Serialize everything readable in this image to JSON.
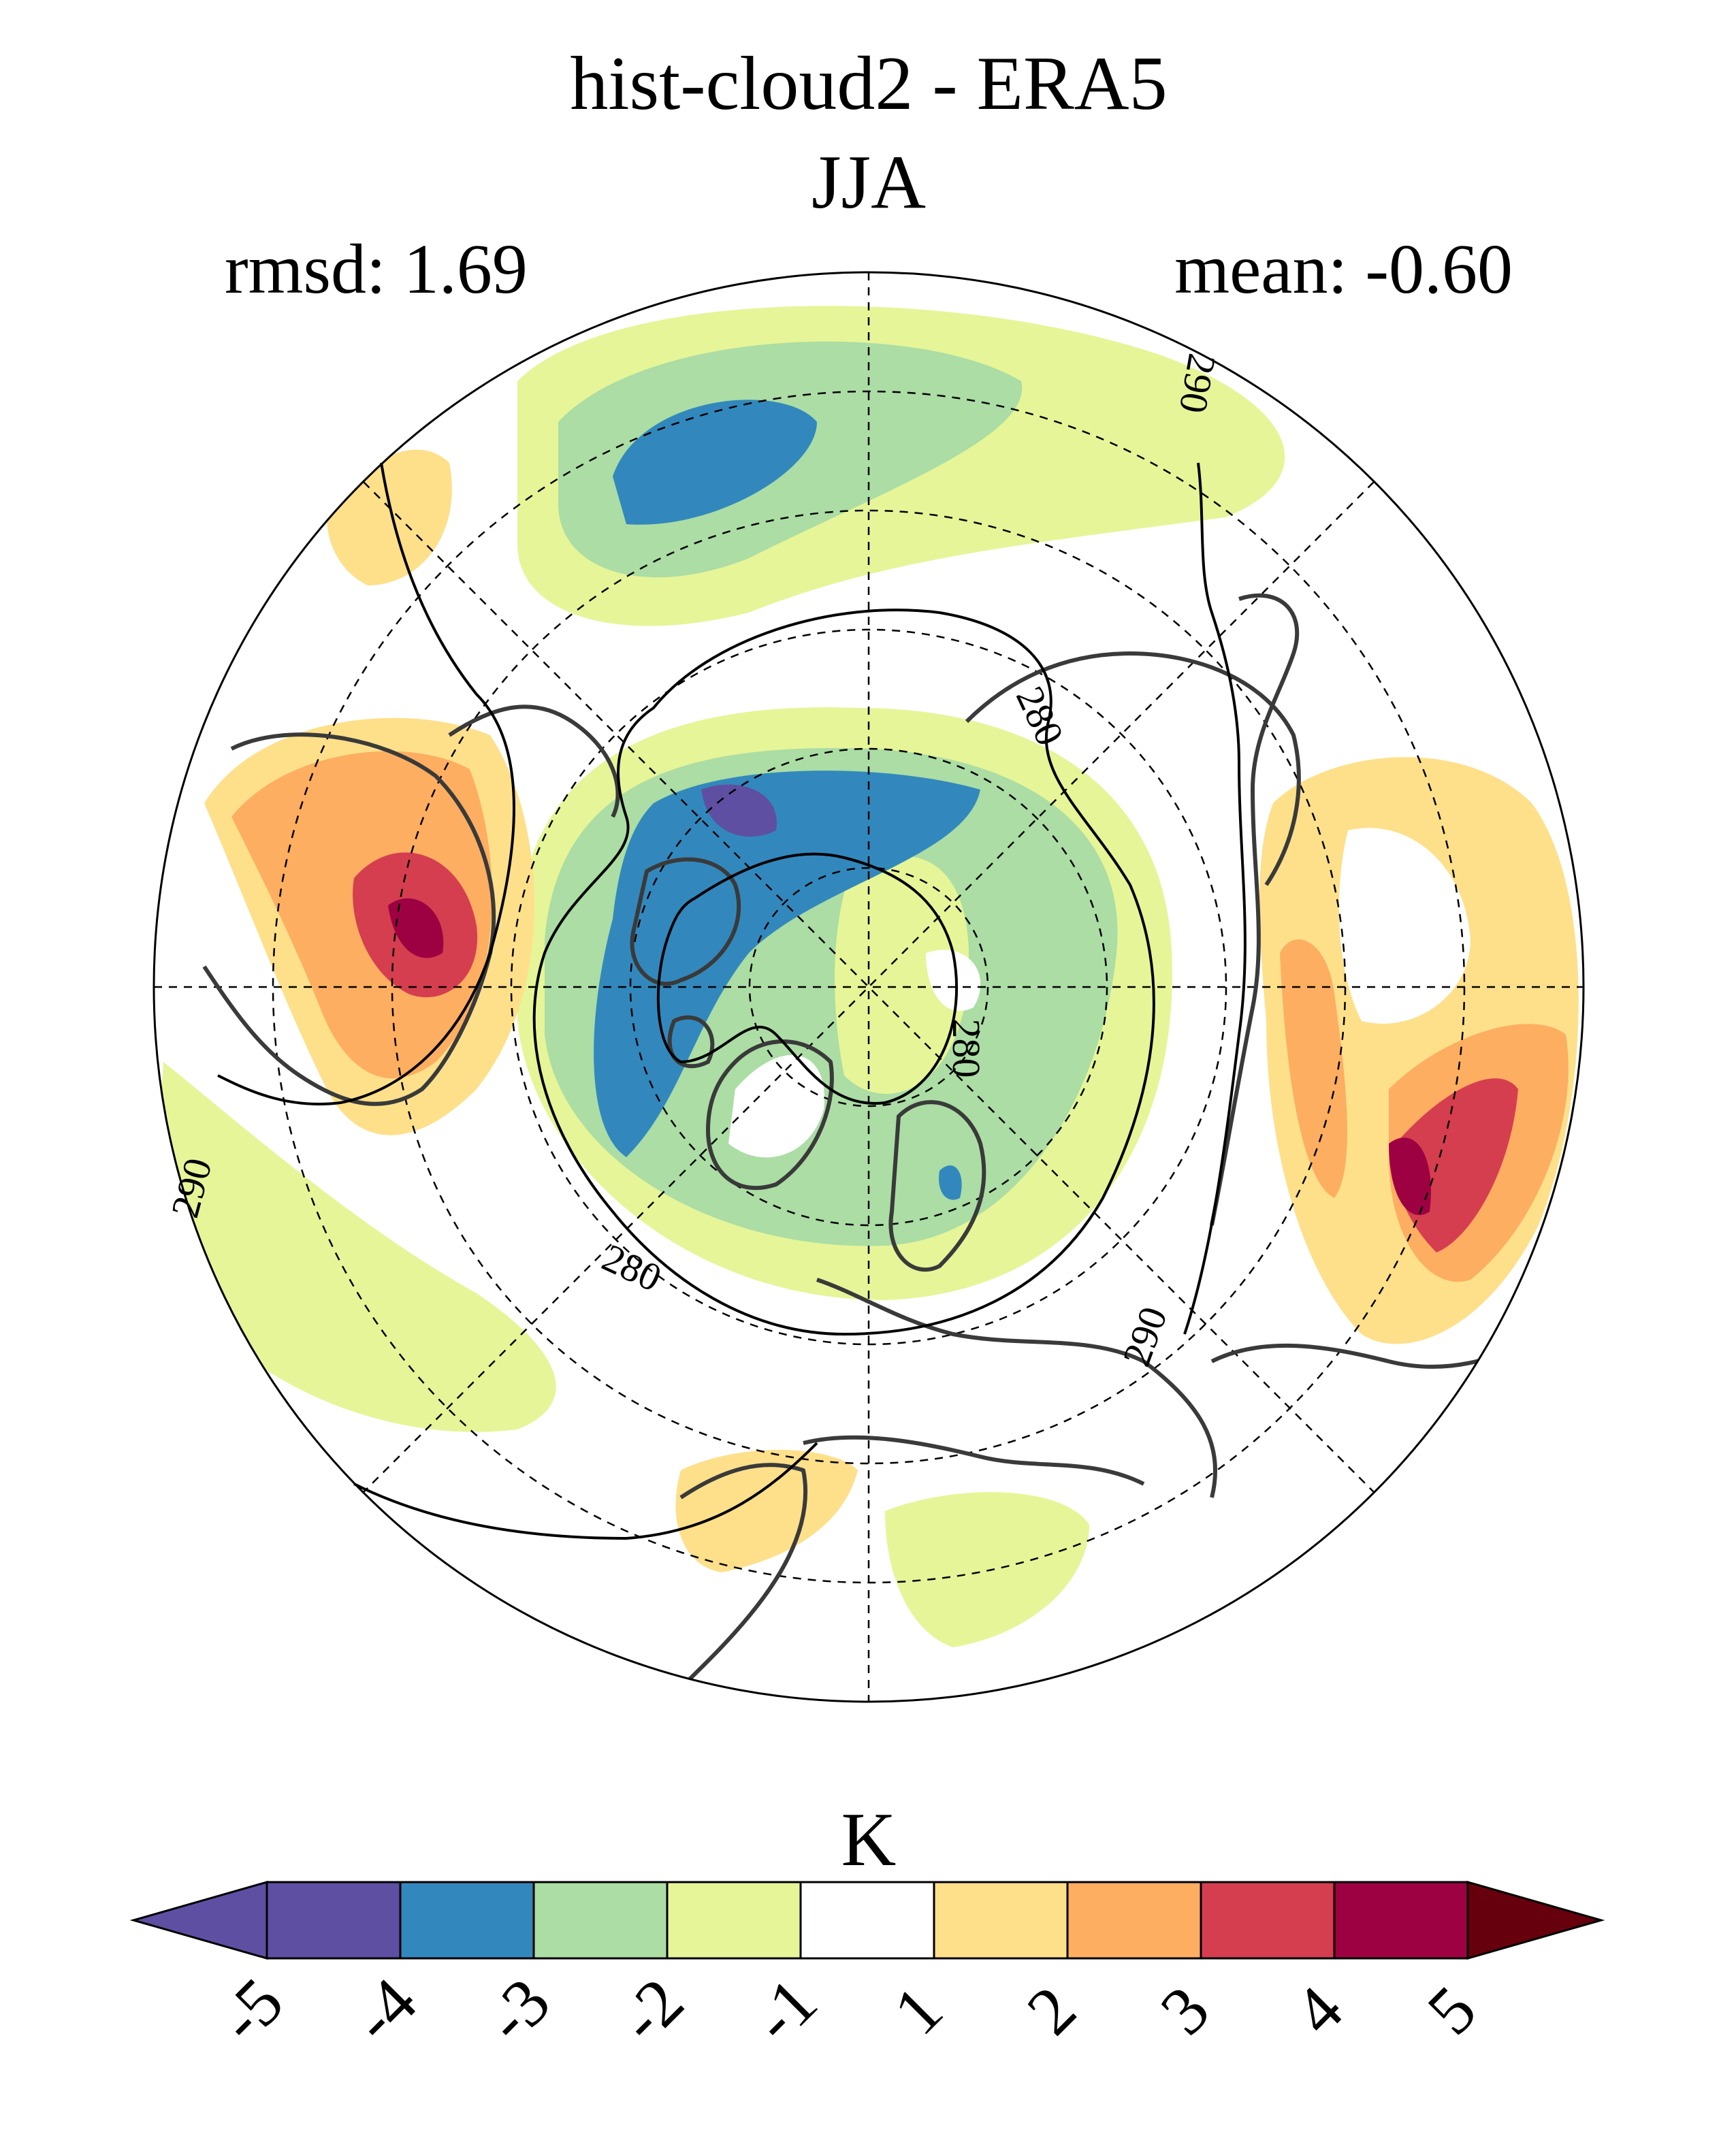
{
  "figure": {
    "title_line1": "hist-cloud2 - ERA5",
    "title_line2": "JJA",
    "rmsd_text": "rmsd: 1.69",
    "mean_text": "mean: -0.60"
  },
  "map": {
    "projection": "north-polar-stereographic",
    "field": "surface temperature difference",
    "contour_labels": [
      "290",
      "280",
      "280",
      "280",
      "290",
      "290"
    ]
  },
  "colorbar": {
    "unit_label": "K",
    "tick_labels": [
      "-5",
      "-4",
      "-3",
      "-2",
      "-1",
      "1",
      "2",
      "3",
      "4",
      "5"
    ],
    "colors": [
      "#5e4fa2",
      "#5e4fa2",
      "#3288bd",
      "#abdda4",
      "#e6f598",
      "#ffffff",
      "#fee08b",
      "#fdae61",
      "#d53e4f",
      "#9e0142",
      "#67000d"
    ]
  },
  "chart_data": {
    "type": "heatmap",
    "title": "hist-cloud2 - ERA5\nJJA",
    "stats": {
      "rmsd": 1.69,
      "mean": -0.6
    },
    "colorbar_unit": "K",
    "colorbar_levels": [
      -5,
      -4,
      -3,
      -2,
      -1,
      1,
      2,
      3,
      4,
      5
    ],
    "colorbar_extends": "both",
    "contour_levels_shown": [
      280,
      290
    ]
  }
}
